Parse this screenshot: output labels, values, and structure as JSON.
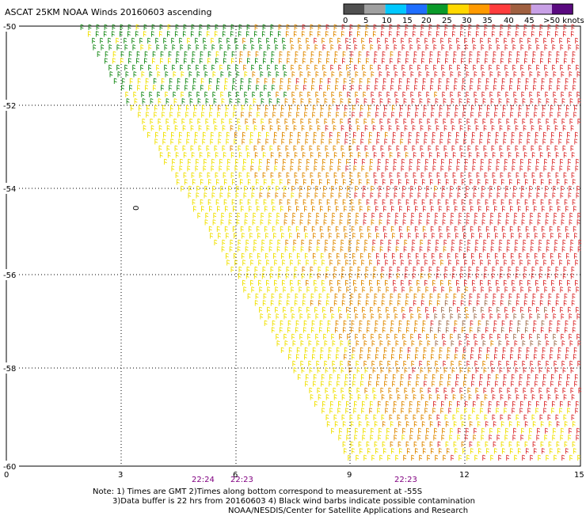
{
  "title": "ASCAT 25KM NOAA Winds 20160603 ascending",
  "legend": {
    "labels": [
      "0",
      "5",
      "10",
      "15",
      "20",
      "25",
      "30",
      "35",
      "40",
      "45",
      ">50 knots"
    ],
    "colors": [
      "#505050",
      "#a0a0a0",
      "#00c8ff",
      "#1e6eff",
      "#0a9a2a",
      "#ffd800",
      "#ff9a00",
      "#ff3c3c",
      "#a06040",
      "#c8a0e6",
      "#5a0a80"
    ]
  },
  "axes": {
    "lat_ticks": [
      "-50",
      "-52",
      "-54",
      "-56",
      "-58",
      "-60"
    ],
    "lon_ticks": [
      "0",
      "3",
      "6",
      "9",
      "12",
      "15"
    ]
  },
  "times": [
    "22:24",
    "22:23",
    "22:23"
  ],
  "stray_label": "0",
  "notes": {
    "line1": "Note: 1) Times are GMT 2)Times along bottom correspond to measurement at -55S",
    "line2": "3)Data buffer is 22 hrs from 20160603 4) Black wind barbs indicate possible contamination",
    "line3": "NOAA/NESDIS/Center for Satellite Applications and Research"
  },
  "swath": {
    "wind_color_zones": [
      {
        "zone": "north-west edge",
        "color": "#1a8c1a",
        "knots": "15-20"
      },
      {
        "zone": "west swath",
        "color": "#f0e000",
        "knots": "20-25"
      },
      {
        "zone": "central swath",
        "color": "#e08a00",
        "knots": "25-30"
      },
      {
        "zone": "east swath",
        "color": "#dc3232",
        "knots": "30-35"
      },
      {
        "zone": "south-east patch",
        "color": "#a07050",
        "knots": "35-40"
      }
    ]
  }
}
